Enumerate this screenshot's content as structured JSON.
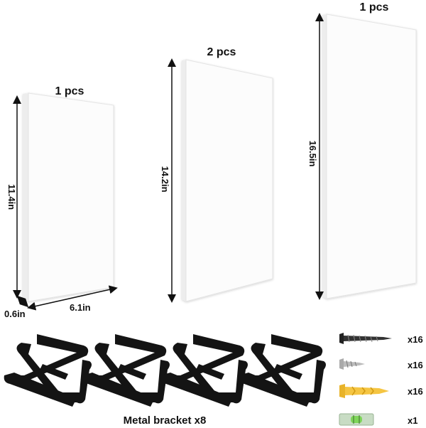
{
  "shelves": [
    {
      "quantity": "1 pcs",
      "height": "11.4in",
      "depth": "0.6in",
      "width": "6.1in"
    },
    {
      "quantity": "2 pcs",
      "height": "14.2in"
    },
    {
      "quantity": "1 pcs",
      "height": "16.5in"
    }
  ],
  "brackets": {
    "label": "Metal bracket x8"
  },
  "hardware": [
    {
      "count": "x16"
    },
    {
      "count": "x16"
    },
    {
      "count": "x16"
    },
    {
      "count": "x1"
    }
  ]
}
